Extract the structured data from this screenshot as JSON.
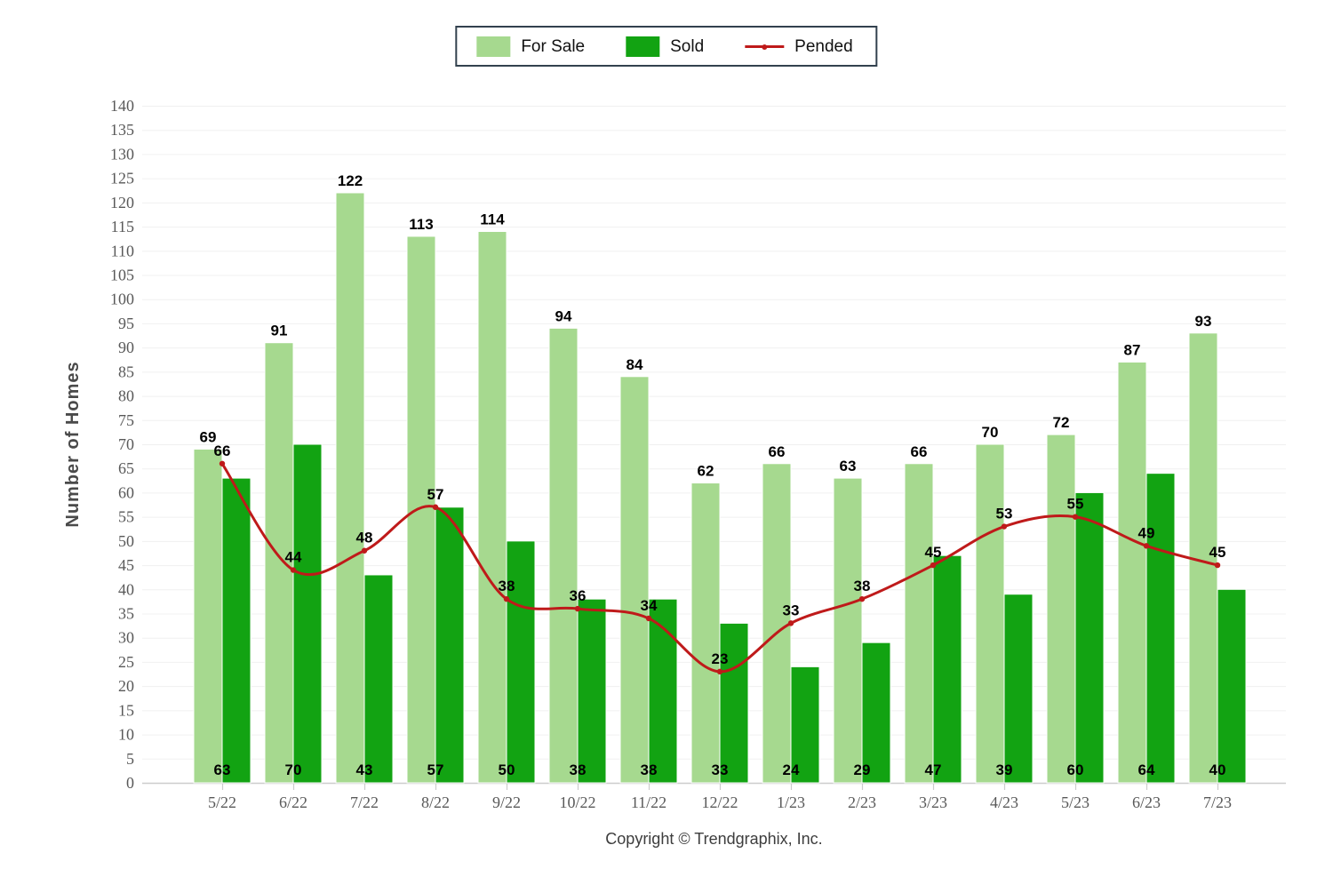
{
  "legend": {
    "items": [
      {
        "label": "For Sale",
        "type": "swatch",
        "color": "#a6d98f"
      },
      {
        "label": "Sold",
        "type": "swatch",
        "color": "#12a312"
      },
      {
        "label": "Pended",
        "type": "line",
        "color": "#bf1a1a"
      }
    ]
  },
  "copyright": "Copyright © Trendgraphix, Inc.",
  "colors": {
    "for_sale": "#a6d98f",
    "sold": "#12a312",
    "pended": "#bf1a1a",
    "grid": "#f0f0f0",
    "axis": "#cccccc",
    "tick_text": "#595959",
    "axis_title": "#4a4a4a",
    "legend_border": "#32414e"
  },
  "chart_data": {
    "type": "bar",
    "title": "",
    "ylabel": "Number of Homes",
    "xlabel": "",
    "ylim": [
      0,
      140
    ],
    "ytick_step": 5,
    "grid": true,
    "legend_position": "top-center",
    "categories": [
      "5/22",
      "6/22",
      "7/22",
      "8/22",
      "9/22",
      "10/22",
      "11/22",
      "12/22",
      "1/23",
      "2/23",
      "3/23",
      "4/23",
      "5/23",
      "6/23",
      "7/23"
    ],
    "series": [
      {
        "name": "For Sale",
        "type": "bar",
        "color": "#a6d98f",
        "values": [
          69,
          91,
          122,
          113,
          114,
          94,
          84,
          62,
          66,
          63,
          66,
          70,
          72,
          87,
          93
        ],
        "label_position": "above-bar"
      },
      {
        "name": "Sold",
        "type": "bar",
        "color": "#12a312",
        "values": [
          63,
          70,
          43,
          57,
          50,
          38,
          38,
          33,
          24,
          29,
          47,
          39,
          60,
          64,
          40
        ],
        "label_position": "bottom-inside"
      },
      {
        "name": "Pended",
        "type": "line",
        "color": "#bf1a1a",
        "smooth": true,
        "markers": true,
        "values": [
          66,
          44,
          48,
          57,
          38,
          36,
          34,
          23,
          33,
          38,
          45,
          53,
          55,
          49,
          45
        ],
        "label_position": "above-point"
      }
    ]
  }
}
